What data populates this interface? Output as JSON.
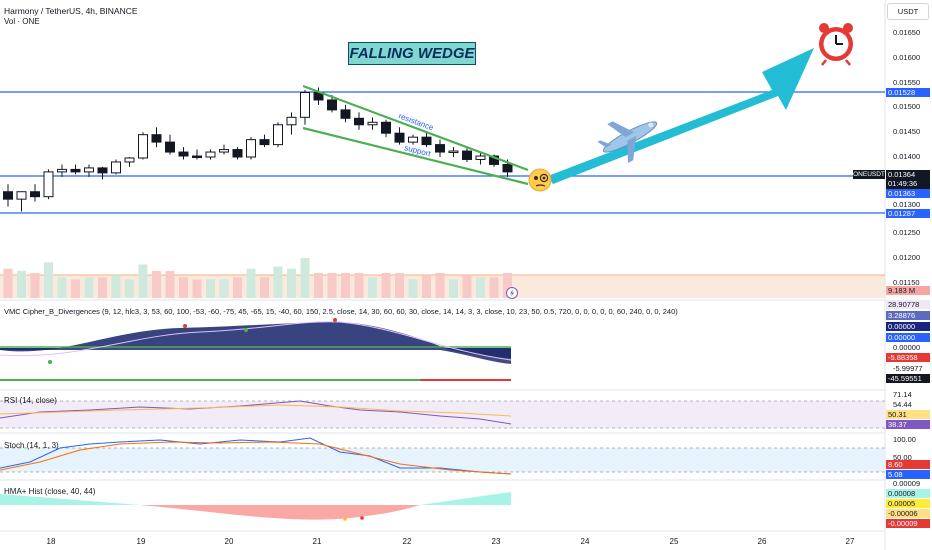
{
  "header": {
    "symbol_line": "Harmony / TetherUS, 4h, BINANCE",
    "volume_label": "Vol · ONE"
  },
  "currency_button": "USDT",
  "annotation": {
    "banner": "FALLING WEDGE",
    "resistance_label": "resistance",
    "support_label": "support"
  },
  "price_axis": {
    "ticks": [
      "0.01650",
      "0.01600",
      "0.01550",
      "0.01500",
      "0.01450",
      "0.01400",
      "0.01300",
      "0.01250",
      "0.01200",
      "0.01150"
    ],
    "levels": {
      "upper": "0.01528",
      "middle": "0.01363",
      "lower": "0.01287"
    },
    "symbol_tag": "ONEUSDT",
    "last_price": "0.01364",
    "countdown": "01:49:36",
    "volume_value": "9.183 M"
  },
  "time_axis": {
    "ticks": [
      "18",
      "19",
      "20",
      "21",
      "22",
      "23",
      "24",
      "25",
      "26",
      "27"
    ]
  },
  "chart_data": {
    "type": "candlestick",
    "x": [
      "18",
      "19",
      "20",
      "21",
      "22",
      "23",
      "24",
      "25",
      "26",
      "27"
    ],
    "y_range": [
      0.0115,
      0.0165
    ],
    "horizontal_levels": [
      0.01528,
      0.01363,
      0.01287
    ],
    "candles": [
      {
        "o": 0.0133,
        "h": 0.01345,
        "l": 0.013,
        "c": 0.01315
      },
      {
        "o": 0.01315,
        "h": 0.0133,
        "l": 0.0129,
        "c": 0.0133
      },
      {
        "o": 0.0133,
        "h": 0.01345,
        "l": 0.0131,
        "c": 0.0132
      },
      {
        "o": 0.0132,
        "h": 0.01375,
        "l": 0.01315,
        "c": 0.0137
      },
      {
        "o": 0.0137,
        "h": 0.01385,
        "l": 0.0136,
        "c": 0.01375
      },
      {
        "o": 0.01375,
        "h": 0.01385,
        "l": 0.01365,
        "c": 0.0137
      },
      {
        "o": 0.0137,
        "h": 0.01385,
        "l": 0.0136,
        "c": 0.01378
      },
      {
        "o": 0.01378,
        "h": 0.0138,
        "l": 0.01355,
        "c": 0.01368
      },
      {
        "o": 0.01368,
        "h": 0.01395,
        "l": 0.01365,
        "c": 0.0139
      },
      {
        "o": 0.0139,
        "h": 0.014,
        "l": 0.0138,
        "c": 0.01398
      },
      {
        "o": 0.01398,
        "h": 0.0145,
        "l": 0.01395,
        "c": 0.01445
      },
      {
        "o": 0.01445,
        "h": 0.0146,
        "l": 0.0142,
        "c": 0.0143
      },
      {
        "o": 0.0143,
        "h": 0.01445,
        "l": 0.01405,
        "c": 0.0141
      },
      {
        "o": 0.0141,
        "h": 0.0142,
        "l": 0.01395,
        "c": 0.01402
      },
      {
        "o": 0.01402,
        "h": 0.01415,
        "l": 0.01395,
        "c": 0.014
      },
      {
        "o": 0.014,
        "h": 0.01415,
        "l": 0.01395,
        "c": 0.0141
      },
      {
        "o": 0.0141,
        "h": 0.01425,
        "l": 0.01405,
        "c": 0.01415
      },
      {
        "o": 0.01415,
        "h": 0.0142,
        "l": 0.01395,
        "c": 0.014
      },
      {
        "o": 0.014,
        "h": 0.0144,
        "l": 0.01395,
        "c": 0.01435
      },
      {
        "o": 0.01435,
        "h": 0.01445,
        "l": 0.0142,
        "c": 0.01425
      },
      {
        "o": 0.01425,
        "h": 0.0147,
        "l": 0.0142,
        "c": 0.01465
      },
      {
        "o": 0.01465,
        "h": 0.0149,
        "l": 0.01445,
        "c": 0.0148
      },
      {
        "o": 0.0148,
        "h": 0.01535,
        "l": 0.01465,
        "c": 0.0153
      },
      {
        "o": 0.0153,
        "h": 0.0154,
        "l": 0.01505,
        "c": 0.01515
      },
      {
        "o": 0.01515,
        "h": 0.01525,
        "l": 0.0149,
        "c": 0.01495
      },
      {
        "o": 0.01495,
        "h": 0.01505,
        "l": 0.0147,
        "c": 0.01478
      },
      {
        "o": 0.01478,
        "h": 0.0149,
        "l": 0.01455,
        "c": 0.01465
      },
      {
        "o": 0.01465,
        "h": 0.0148,
        "l": 0.01455,
        "c": 0.0147
      },
      {
        "o": 0.0147,
        "h": 0.01475,
        "l": 0.0144,
        "c": 0.01448
      },
      {
        "o": 0.01448,
        "h": 0.0146,
        "l": 0.01425,
        "c": 0.0143
      },
      {
        "o": 0.0143,
        "h": 0.01445,
        "l": 0.01425,
        "c": 0.0144
      },
      {
        "o": 0.0144,
        "h": 0.0145,
        "l": 0.0142,
        "c": 0.01425
      },
      {
        "o": 0.01425,
        "h": 0.01435,
        "l": 0.014,
        "c": 0.0141
      },
      {
        "o": 0.0141,
        "h": 0.0142,
        "l": 0.014,
        "c": 0.01412
      },
      {
        "o": 0.01412,
        "h": 0.0142,
        "l": 0.0139,
        "c": 0.01395
      },
      {
        "o": 0.01395,
        "h": 0.0141,
        "l": 0.01385,
        "c": 0.01402
      },
      {
        "o": 0.01402,
        "h": 0.01405,
        "l": 0.0138,
        "c": 0.01385
      },
      {
        "o": 0.01385,
        "h": 0.01395,
        "l": 0.0136,
        "c": 0.0137
      }
    ],
    "volume_colors": {
      "up": "#cfe9dc",
      "down": "#f7c9c7"
    },
    "colors": {
      "accent_blue": "#2962ff",
      "wedge_green": "#4caf50",
      "arrow_cyan": "#22bcd4",
      "text": "#131722"
    }
  },
  "panels": {
    "vmc": {
      "title": "VMC Cipher_B_Divergences (9, 12, hlc3, 3, 53, 60, 100, -53, -60, -75, 45, -65, 15, -40, 60, 150, 2.5, close, 14, 30, 60, 60, 30, close, 14, 14, 3, 3, close, 10, 23, 50, 0.5, 720, 0, 0, 0, 0, 0, 60, 240, 0, 0, 240)",
      "ticks": [
        "0.00000",
        "-5.99977"
      ],
      "tags": [
        "28.90778",
        "3.28876",
        "0.00000",
        "0.00000",
        "-5.88358",
        "-45.59551"
      ]
    },
    "rsi": {
      "title": "RSI (14, close)",
      "ticks": [
        "71.14",
        "54.44"
      ],
      "tags": [
        "50.31",
        "38.37"
      ]
    },
    "stoch": {
      "title": "Stoch (14, 1, 3)",
      "ticks": [
        "100.00",
        "50.00",
        "0.00009"
      ],
      "tags": [
        "8.60",
        "5.08"
      ]
    },
    "hma": {
      "title": "HMA+ Hist (close, 40, 44)",
      "tags": [
        "0.00008",
        "0.00005",
        "-0.00006",
        "-0.00009"
      ]
    }
  }
}
